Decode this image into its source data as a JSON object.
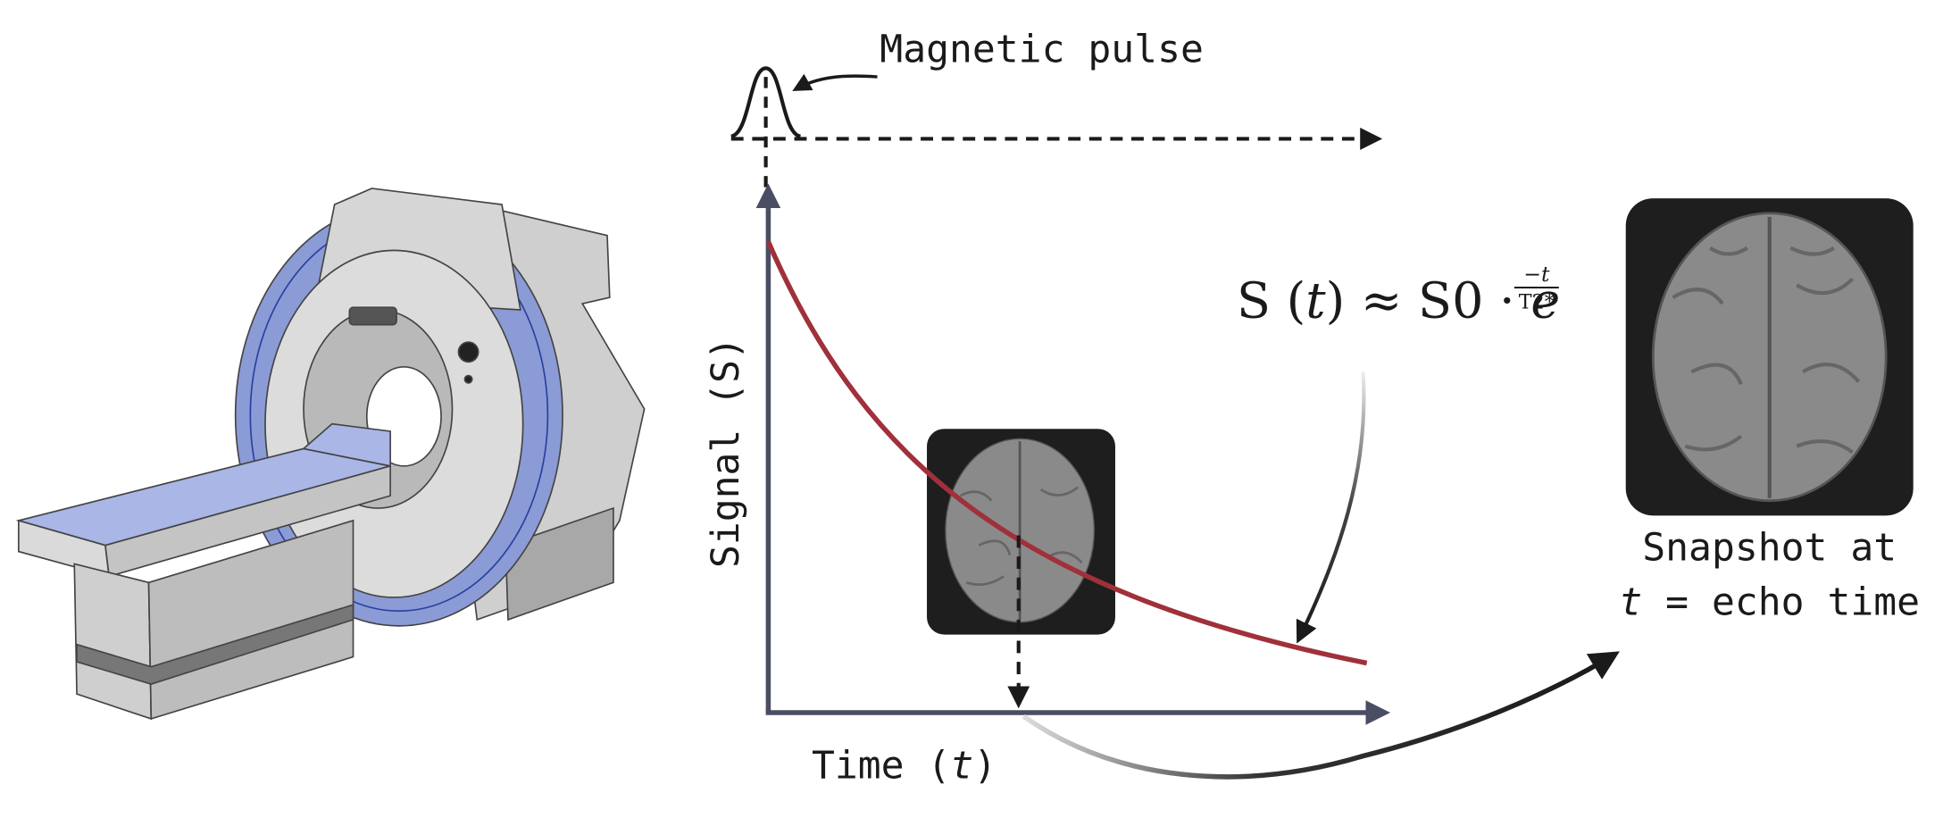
{
  "pulse_label": "Magnetic pulse",
  "y_axis_label": "Signal (S)",
  "x_axis_label": {
    "prefix": "Time (",
    "var": "t",
    "suffix": ")"
  },
  "formula": {
    "left": "S (",
    "var": "t",
    "right": ") ≈ S0 · ",
    "base": "e",
    "numerator": "−t",
    "denominator": "T2*"
  },
  "caption": {
    "line1": "Snapshot at",
    "var": "t",
    "rest": " = echo time"
  }
}
